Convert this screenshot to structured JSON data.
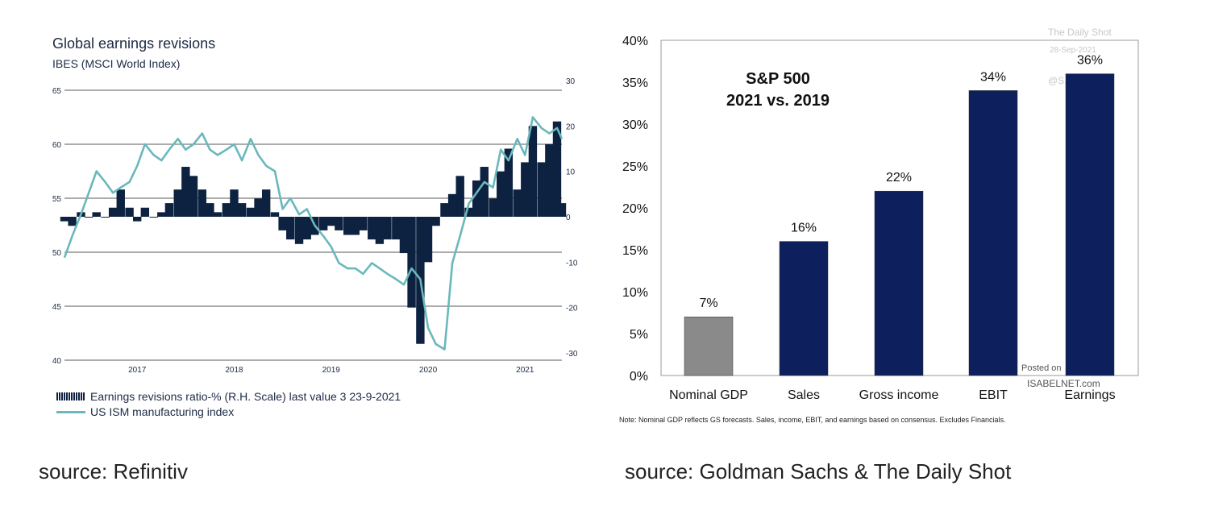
{
  "left": {
    "title": "Global earnings revisions",
    "subtitle": "IBES (MSCI World Index)",
    "legend": {
      "bars": "Earnings revisions ratio-% (R.H. Scale) last value 3 23-9-2021",
      "line": "US ISM manufacturing index"
    },
    "source": "source: Refinitiv",
    "colors": {
      "bars": "#0d2240",
      "line": "#6ab8bc"
    }
  },
  "right": {
    "note": "Note: Nominal GDP reflects GS forecasts. Sales, income, EBIT, and earnings based on consensus. Excludes Financials.",
    "watermark_top": [
      "The Daily Shot",
      "28-Sep-2021",
      "@S..."
    ],
    "watermark_bottom": [
      "Posted on",
      "ISABELNET.com"
    ],
    "source": "source: Goldman Sachs & The Daily Shot",
    "colors": {
      "bar": "#0d1f5c",
      "bar_gdp": "#8a8a8a"
    }
  },
  "chart_data": [
    {
      "type": "line",
      "title": "Global earnings revisions",
      "subtitle": "IBES (MSCI World Index)",
      "x_ticks": [
        "2017",
        "2018",
        "2019",
        "2020",
        "2021"
      ],
      "x_range": [
        2016.25,
        2021.38
      ],
      "y_left": {
        "ticks": [
          "40",
          "45",
          "50",
          "55",
          "60",
          "65"
        ],
        "range": [
          40,
          65
        ]
      },
      "y_right": {
        "ticks": [
          "-30",
          "-20",
          "-10",
          "0",
          "10",
          "20",
          "30"
        ],
        "range": [
          -32,
          30
        ]
      },
      "grid": true,
      "series": [
        {
          "name": "US ISM manufacturing index",
          "kind": "line",
          "axis": "left",
          "x": [
            2016.25,
            2016.33,
            2016.42,
            2016.5,
            2016.58,
            2016.67,
            2016.75,
            2016.83,
            2016.92,
            2017.0,
            2017.08,
            2017.17,
            2017.25,
            2017.33,
            2017.42,
            2017.5,
            2017.58,
            2017.67,
            2017.75,
            2017.83,
            2017.92,
            2018.0,
            2018.08,
            2018.17,
            2018.25,
            2018.33,
            2018.42,
            2018.5,
            2018.58,
            2018.67,
            2018.75,
            2018.83,
            2018.92,
            2019.0,
            2019.08,
            2019.17,
            2019.25,
            2019.33,
            2019.42,
            2019.5,
            2019.58,
            2019.67,
            2019.75,
            2019.83,
            2019.92,
            2020.0,
            2020.08,
            2020.17,
            2020.25,
            2020.33,
            2020.42,
            2020.5,
            2020.58,
            2020.67,
            2020.75,
            2020.83,
            2020.92,
            2021.0,
            2021.08,
            2021.17,
            2021.25,
            2021.33,
            2021.38
          ],
          "values": [
            49.5,
            51.5,
            53.5,
            55.5,
            57.5,
            56.5,
            55.5,
            56.0,
            56.5,
            58.0,
            60.0,
            59.0,
            58.5,
            59.5,
            60.5,
            59.5,
            60.0,
            61.0,
            59.5,
            59.0,
            59.5,
            60.0,
            58.5,
            60.5,
            59.0,
            58.0,
            57.5,
            54.0,
            55.0,
            53.5,
            54.0,
            52.5,
            51.5,
            50.5,
            49.0,
            48.5,
            48.5,
            48.0,
            49.0,
            48.5,
            48.0,
            47.5,
            47.0,
            48.5,
            47.5,
            43.0,
            41.5,
            41.0,
            49.0,
            51.5,
            54.5,
            55.5,
            56.5,
            56.0,
            59.5,
            58.5,
            60.5,
            59.0,
            62.5,
            61.5,
            61.0,
            61.5,
            60.5
          ]
        },
        {
          "name": "Earnings revisions ratio-% (R.H. Scale)",
          "kind": "area",
          "axis": "right",
          "x": [
            2016.25,
            2016.33,
            2016.42,
            2016.5,
            2016.58,
            2016.67,
            2016.75,
            2016.83,
            2016.92,
            2017.0,
            2017.08,
            2017.17,
            2017.25,
            2017.33,
            2017.42,
            2017.5,
            2017.58,
            2017.67,
            2017.75,
            2017.83,
            2017.92,
            2018.0,
            2018.08,
            2018.17,
            2018.25,
            2018.33,
            2018.42,
            2018.5,
            2018.58,
            2018.67,
            2018.75,
            2018.83,
            2018.92,
            2019.0,
            2019.08,
            2019.17,
            2019.25,
            2019.33,
            2019.42,
            2019.5,
            2019.58,
            2019.67,
            2019.75,
            2019.83,
            2019.92,
            2020.0,
            2020.08,
            2020.17,
            2020.25,
            2020.33,
            2020.42,
            2020.5,
            2020.58,
            2020.67,
            2020.75,
            2020.83,
            2020.92,
            2021.0,
            2021.08,
            2021.17,
            2021.25,
            2021.33,
            2021.38
          ],
          "values": [
            -1,
            -2,
            1,
            0,
            1,
            0,
            2,
            6,
            2,
            -1,
            2,
            0,
            1,
            3,
            6,
            11,
            9,
            6,
            3,
            1,
            3,
            6,
            3,
            2,
            4,
            6,
            1,
            -3,
            -5,
            -6,
            -5,
            -4,
            -3,
            -2,
            -3,
            -4,
            -4,
            -3,
            -5,
            -6,
            -5,
            -5,
            -8,
            -20,
            -28,
            -10,
            -2,
            3,
            5,
            9,
            2,
            8,
            11,
            4,
            10,
            15,
            6,
            12,
            20,
            12,
            16,
            21,
            3
          ]
        }
      ]
    },
    {
      "type": "bar",
      "title": "S&P 500",
      "subtitle": "2021 vs. 2019",
      "categories": [
        "Nominal GDP",
        "Sales",
        "Gross income",
        "EBIT",
        "Earnings"
      ],
      "values": [
        7,
        16,
        22,
        34,
        36
      ],
      "labels": [
        "7%",
        "16%",
        "22%",
        "34%",
        "36%"
      ],
      "y_ticks": [
        "0%",
        "5%",
        "10%",
        "15%",
        "20%",
        "25%",
        "30%",
        "35%",
        "40%"
      ],
      "ylim": [
        0,
        40
      ]
    }
  ]
}
